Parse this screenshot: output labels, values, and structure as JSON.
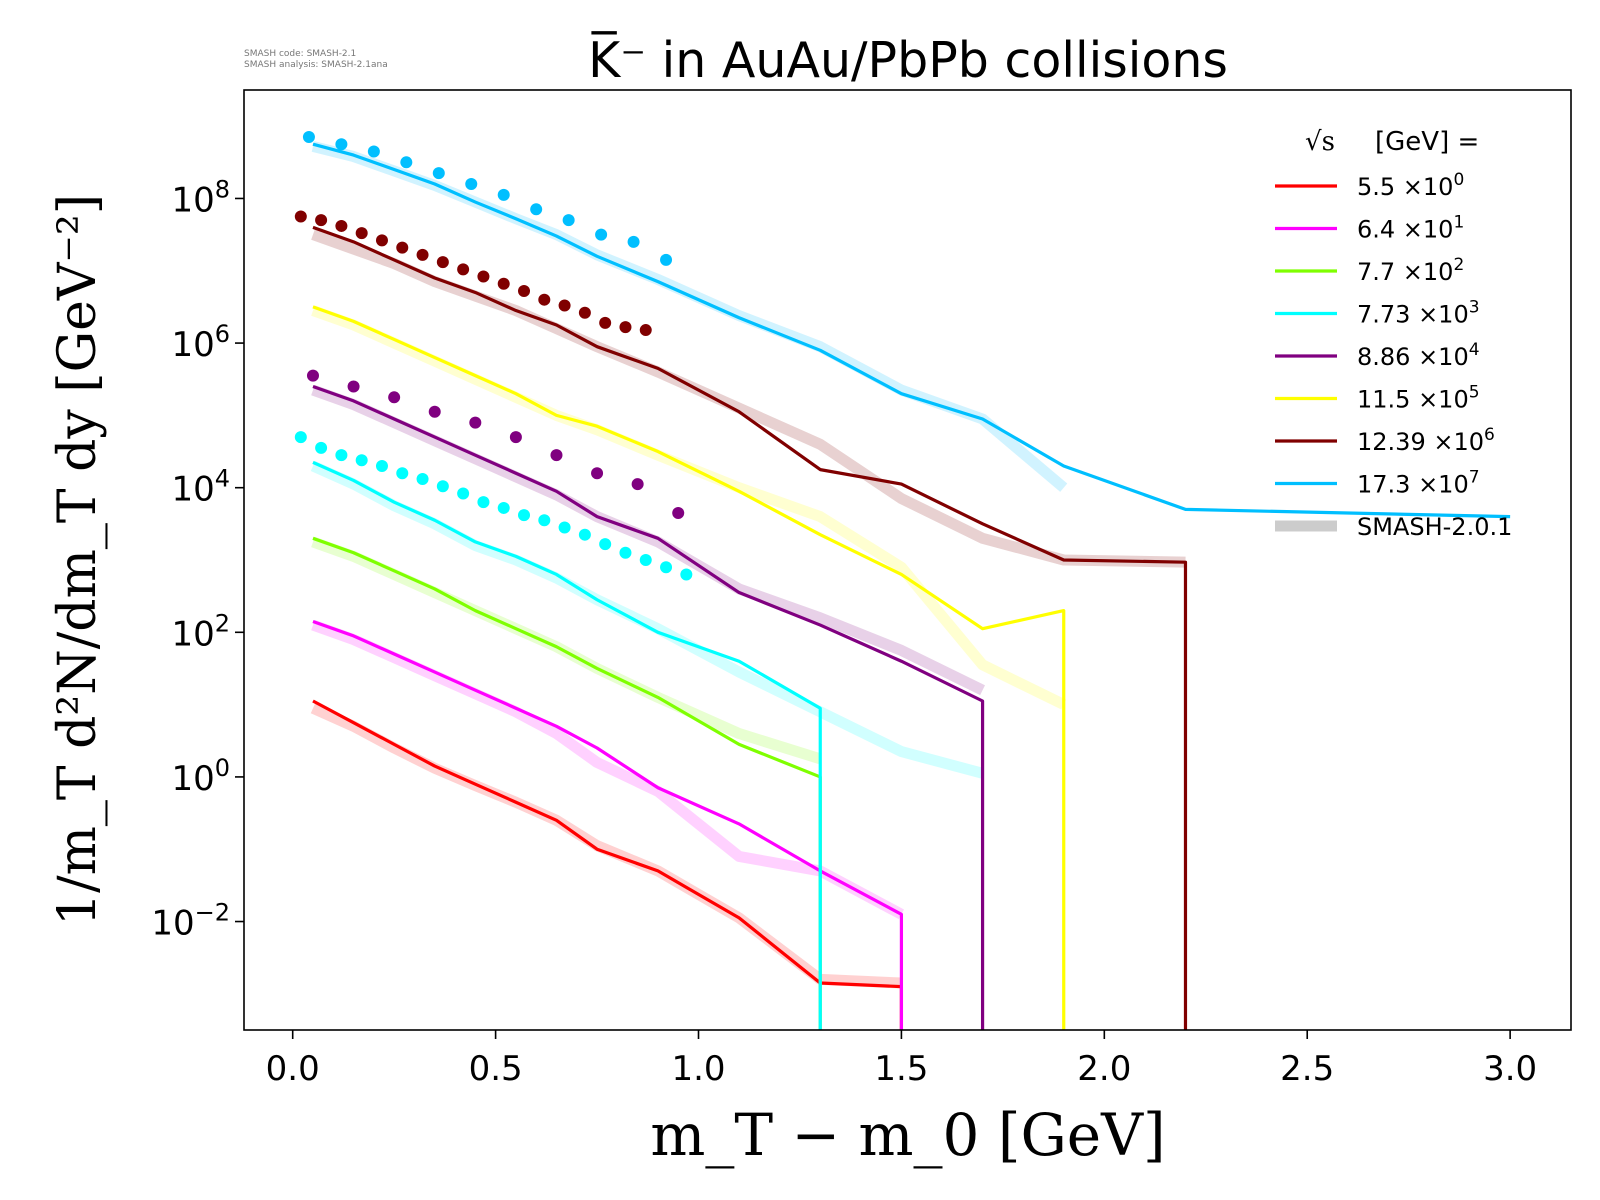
{
  "meta": {
    "code_line": "SMASH code:      SMASH-2.1",
    "analysis_line": "SMASH analysis: SMASH-2.1ana"
  },
  "chart_data": {
    "type": "line",
    "title": "K̅⁻ in AuAu/PbPb collisions",
    "xlabel": "m_T − m_0 [GeV]",
    "ylabel": "1/m_T d²N/dm_T dy [GeV⁻²]",
    "xlim": [
      -0.12,
      3.15
    ],
    "ylim_log10": [
      -3.5,
      9.5
    ],
    "yscale": "log",
    "x_ticks": [
      0.0,
      0.5,
      1.0,
      1.5,
      2.0,
      2.5,
      3.0
    ],
    "x_tick_labels": [
      "0.0",
      "0.5",
      "1.0",
      "1.5",
      "2.0",
      "2.5",
      "3.0"
    ],
    "y_ticks_log10": [
      -2,
      0,
      2,
      4,
      6,
      8
    ],
    "y_tick_labels": [
      {
        "base": "10",
        "exp": "−2"
      },
      {
        "base": "10",
        "exp": "0"
      },
      {
        "base": "10",
        "exp": "2"
      },
      {
        "base": "10",
        "exp": "4"
      },
      {
        "base": "10",
        "exp": "6"
      },
      {
        "base": "10",
        "exp": "8"
      }
    ],
    "legend": {
      "title": "[GeV] =",
      "sqrt_symbol": "√s",
      "position": "top-right",
      "reference_label": "SMASH-2.0.1",
      "reference_color": "#cccccc"
    },
    "series": [
      {
        "name": "5.5",
        "mult": "×10",
        "exp": "0",
        "color": "#ff0000",
        "x": [
          0.05,
          0.15,
          0.25,
          0.35,
          0.45,
          0.55,
          0.65,
          0.75,
          0.9,
          1.1,
          1.3,
          1.5
        ],
        "log10y": [
          1.05,
          0.75,
          0.45,
          0.15,
          -0.1,
          -0.35,
          -0.6,
          -1.0,
          -1.3,
          -1.95,
          -2.85,
          -2.9
        ],
        "ref_log10y": [
          0.95,
          0.7,
          0.4,
          0.12,
          -0.12,
          -0.35,
          -0.6,
          -0.95,
          -1.3,
          -1.95,
          -2.8,
          -2.85
        ],
        "drop_x": 1.5
      },
      {
        "name": "6.4",
        "mult": "×10",
        "exp": "1",
        "color": "#ff00ff",
        "x": [
          0.05,
          0.15,
          0.25,
          0.35,
          0.45,
          0.55,
          0.65,
          0.75,
          0.9,
          1.1,
          1.3,
          1.5
        ],
        "log10y": [
          2.15,
          1.95,
          1.7,
          1.45,
          1.2,
          0.95,
          0.7,
          0.4,
          -0.15,
          -0.65,
          -1.3,
          -1.9
        ],
        "ref_log10y": [
          2.1,
          1.9,
          1.65,
          1.4,
          1.15,
          0.9,
          0.6,
          0.2,
          -0.2,
          -1.1,
          -1.3,
          -1.9
        ],
        "drop_x": 1.5
      },
      {
        "name": "7.7",
        "mult": "×10",
        "exp": "2",
        "color": "#7fff00",
        "x": [
          0.05,
          0.15,
          0.25,
          0.35,
          0.45,
          0.55,
          0.65,
          0.75,
          0.9,
          1.1,
          1.3
        ],
        "log10y": [
          3.3,
          3.1,
          2.85,
          2.6,
          2.3,
          2.05,
          1.8,
          1.5,
          1.1,
          0.45,
          0.0
        ],
        "ref_log10y": [
          3.25,
          3.05,
          2.8,
          2.55,
          2.3,
          2.05,
          1.8,
          1.5,
          1.1,
          0.6,
          0.25
        ],
        "drop_x": 1.3
      },
      {
        "name": "7.73",
        "mult": "×10",
        "exp": "3",
        "color": "#00ffff",
        "x": [
          0.05,
          0.15,
          0.25,
          0.35,
          0.45,
          0.55,
          0.65,
          0.75,
          0.9,
          1.1,
          1.3
        ],
        "log10y": [
          4.35,
          4.1,
          3.8,
          3.55,
          3.25,
          3.05,
          2.8,
          2.45,
          2.0,
          1.6,
          0.95
        ],
        "ref_log10y": [
          4.3,
          4.05,
          3.75,
          3.5,
          3.2,
          3.0,
          2.75,
          2.45,
          2.05,
          1.45,
          0.9,
          0.35,
          0.05
        ],
        "ref_x": [
          0.05,
          0.15,
          0.25,
          0.35,
          0.45,
          0.55,
          0.65,
          0.75,
          0.9,
          1.1,
          1.3,
          1.5,
          1.7
        ],
        "drop_x": 1.3
      },
      {
        "name": "8.86",
        "mult": "×10",
        "exp": "4",
        "color": "#800080",
        "x": [
          0.05,
          0.15,
          0.25,
          0.35,
          0.45,
          0.55,
          0.65,
          0.75,
          0.9,
          1.1,
          1.3,
          1.5,
          1.7
        ],
        "log10y": [
          5.4,
          5.2,
          4.95,
          4.7,
          4.45,
          4.2,
          3.95,
          3.6,
          3.3,
          2.55,
          2.1,
          1.6,
          1.05
        ],
        "ref_log10y": [
          5.35,
          5.15,
          4.9,
          4.65,
          4.4,
          4.15,
          3.9,
          3.6,
          3.25,
          2.6,
          2.2,
          1.75,
          1.2
        ],
        "drop_x": 1.7
      },
      {
        "name": "11.5",
        "mult": "×10",
        "exp": "5",
        "color": "#ffff00",
        "x": [
          0.05,
          0.15,
          0.25,
          0.35,
          0.45,
          0.55,
          0.65,
          0.75,
          0.9,
          1.1,
          1.3,
          1.5,
          1.7,
          1.9
        ],
        "log10y": [
          6.5,
          6.3,
          6.05,
          5.8,
          5.55,
          5.3,
          5.0,
          4.85,
          4.5,
          3.95,
          3.35,
          2.8,
          2.05,
          2.3
        ],
        "ref_log10y": [
          6.45,
          6.25,
          6.0,
          5.75,
          5.5,
          5.25,
          5.0,
          4.8,
          4.45,
          4.0,
          3.6,
          2.9,
          1.55,
          1.0
        ],
        "drop_x": 1.9
      },
      {
        "name": "12.39",
        "mult": "×10",
        "exp": "6",
        "color": "#800000",
        "x": [
          0.05,
          0.15,
          0.25,
          0.35,
          0.45,
          0.55,
          0.65,
          0.75,
          0.9,
          1.1,
          1.3,
          1.5,
          1.7,
          1.9,
          2.2
        ],
        "log10y": [
          7.6,
          7.4,
          7.15,
          6.9,
          6.7,
          6.45,
          6.25,
          5.95,
          5.65,
          5.05,
          4.25,
          4.05,
          3.5,
          3.0,
          2.97
        ],
        "ref_log10y": [
          7.5,
          7.3,
          7.1,
          6.85,
          6.65,
          6.45,
          6.2,
          5.95,
          5.6,
          5.1,
          4.6,
          3.85,
          3.3,
          3.0,
          2.97
        ],
        "drop_x": 2.2
      },
      {
        "name": "17.3",
        "mult": "×10",
        "exp": "7",
        "color": "#00bfff",
        "x": [
          0.05,
          0.15,
          0.25,
          0.35,
          0.45,
          0.55,
          0.65,
          0.75,
          0.9,
          1.1,
          1.3,
          1.5,
          1.7,
          1.9,
          2.2,
          3.0
        ],
        "log10y": [
          8.75,
          8.6,
          8.4,
          8.2,
          7.95,
          7.72,
          7.48,
          7.2,
          6.85,
          6.35,
          5.9,
          5.3,
          4.95,
          4.3,
          3.7,
          3.6
        ],
        "ref_log10y": [
          8.72,
          8.58,
          8.38,
          8.18,
          7.95,
          7.72,
          7.5,
          7.22,
          6.88,
          6.38,
          5.95,
          5.35,
          4.95,
          4.0
        ],
        "drop_x": null
      }
    ],
    "experiment_points": [
      {
        "color": "#00bfff",
        "x": [
          0.04,
          0.12,
          0.2,
          0.28,
          0.36,
          0.44,
          0.52,
          0.6,
          0.68,
          0.76,
          0.84,
          0.92
        ],
        "log10y": [
          8.85,
          8.75,
          8.65,
          8.5,
          8.35,
          8.2,
          8.05,
          7.85,
          7.7,
          7.5,
          7.4,
          7.15
        ]
      },
      {
        "color": "#800000",
        "x": [
          0.02,
          0.07,
          0.12,
          0.17,
          0.22,
          0.27,
          0.32,
          0.37,
          0.42,
          0.47,
          0.52,
          0.57,
          0.62,
          0.67,
          0.72,
          0.77,
          0.82,
          0.87
        ],
        "log10y": [
          7.75,
          7.7,
          7.62,
          7.52,
          7.42,
          7.32,
          7.22,
          7.12,
          7.02,
          6.92,
          6.82,
          6.72,
          6.6,
          6.52,
          6.42,
          6.28,
          6.22,
          6.18
        ]
      },
      {
        "color": "#800080",
        "x": [
          0.05,
          0.15,
          0.25,
          0.35,
          0.45,
          0.55,
          0.65,
          0.75,
          0.85,
          0.95
        ],
        "log10y": [
          5.55,
          5.4,
          5.25,
          5.05,
          4.9,
          4.7,
          4.45,
          4.2,
          4.05,
          3.65
        ]
      },
      {
        "color": "#00ffff",
        "x": [
          0.02,
          0.07,
          0.12,
          0.17,
          0.22,
          0.27,
          0.32,
          0.37,
          0.42,
          0.47,
          0.52,
          0.57,
          0.62,
          0.67,
          0.72,
          0.77,
          0.82,
          0.87,
          0.92,
          0.97
        ],
        "log10y": [
          4.7,
          4.55,
          4.45,
          4.38,
          4.3,
          4.2,
          4.12,
          4.02,
          3.92,
          3.8,
          3.72,
          3.62,
          3.55,
          3.45,
          3.35,
          3.22,
          3.1,
          3.0,
          2.9,
          2.8
        ]
      }
    ]
  }
}
